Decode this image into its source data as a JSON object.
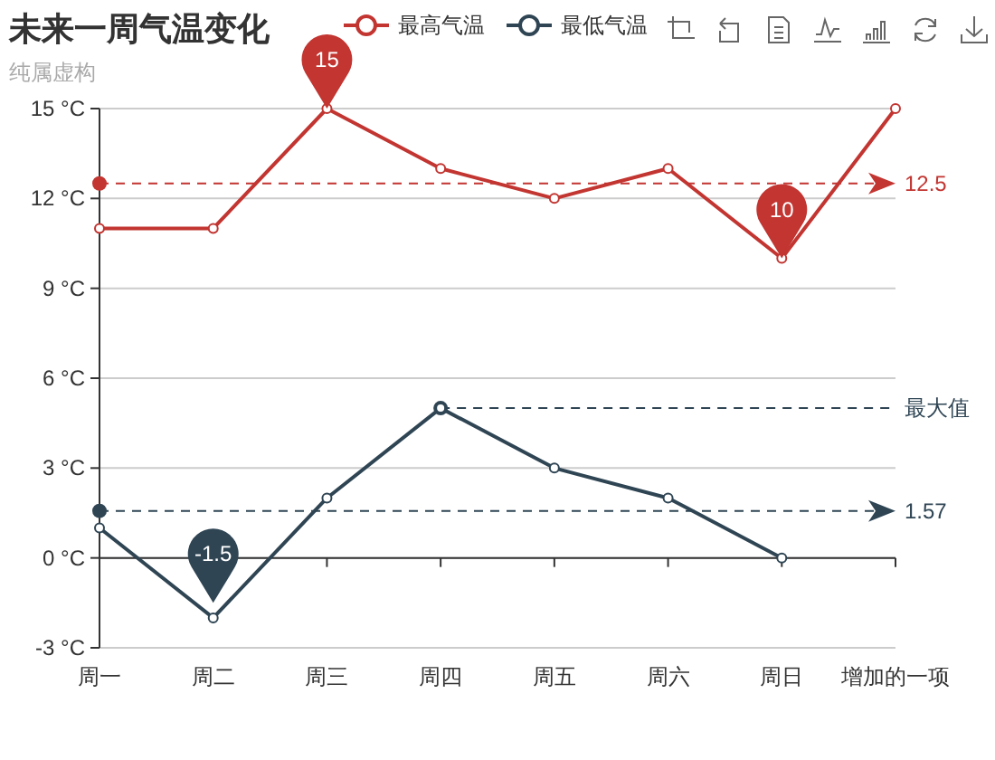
{
  "chart_data": {
    "type": "line",
    "title": "未来一周气温变化",
    "subtitle": "纯属虚构",
    "categories": [
      "周一",
      "周二",
      "周三",
      "周四",
      "周五",
      "周六",
      "周日",
      "增加的一项"
    ],
    "series": [
      {
        "name": "最高气温",
        "color": "#c23531",
        "values": [
          11,
          11,
          15,
          13,
          12,
          13,
          10,
          15
        ]
      },
      {
        "name": "最低气温",
        "color": "#2f4554",
        "values": [
          1,
          -2,
          2,
          5,
          3,
          2,
          0,
          null
        ]
      }
    ],
    "ylim": [
      -3,
      15
    ],
    "yticks": [
      {
        "value": -3,
        "label": "-3 °C"
      },
      {
        "value": 0,
        "label": "0 °C"
      },
      {
        "value": 3,
        "label": "3 °C"
      },
      {
        "value": 6,
        "label": "6 °C"
      },
      {
        "value": 9,
        "label": "9 °C"
      },
      {
        "value": 12,
        "label": "12 °C"
      },
      {
        "value": 15,
        "label": "15 °C"
      }
    ],
    "grid": "y",
    "legend": "top",
    "marker": "circle",
    "line_style": "solid",
    "ref_lines": [
      {
        "axis": "y",
        "value": 12.5,
        "label": "12.5",
        "color": "#c23531",
        "line_style": "dashed"
      },
      {
        "axis": "y",
        "value": 1.57,
        "label": "1.57",
        "color": "#2f4554",
        "line_style": "dashed"
      },
      {
        "axis": "y",
        "value": 5,
        "label": "最大值",
        "color": "#2f4554",
        "line_style": "dashed"
      }
    ],
    "annotations": [
      {
        "text": "15",
        "x": "周三",
        "y": 15
      },
      {
        "text": "10",
        "x": "周日",
        "y": 10
      },
      {
        "text": "-1.5",
        "x": "周二",
        "y": -1.5
      }
    ]
  }
}
